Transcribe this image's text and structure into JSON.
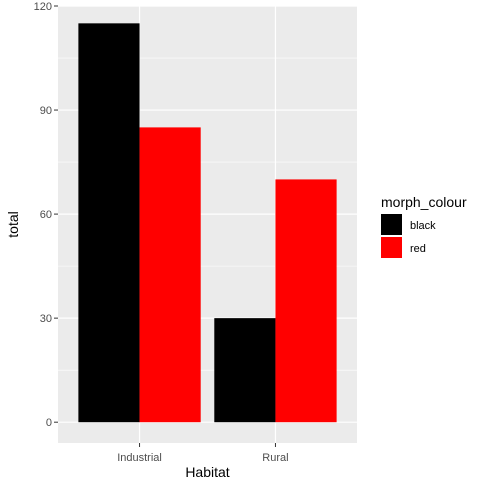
{
  "chart_data": {
    "type": "bar",
    "categories": [
      "Industrial",
      "Rural"
    ],
    "series": [
      {
        "name": "black",
        "color": "#000000",
        "values": [
          115,
          30
        ]
      },
      {
        "name": "red",
        "color": "#ff0000",
        "values": [
          85,
          70
        ]
      }
    ],
    "xlabel": "Habitat",
    "ylabel": "total",
    "ylim": [
      -6,
      120
    ],
    "yticks": [
      0,
      30,
      60,
      90,
      120
    ],
    "grid": true,
    "legend": {
      "title": "morph_colour",
      "placement": "right"
    },
    "panel_background": "#ebebeb",
    "grid_color": "#ffffff"
  }
}
